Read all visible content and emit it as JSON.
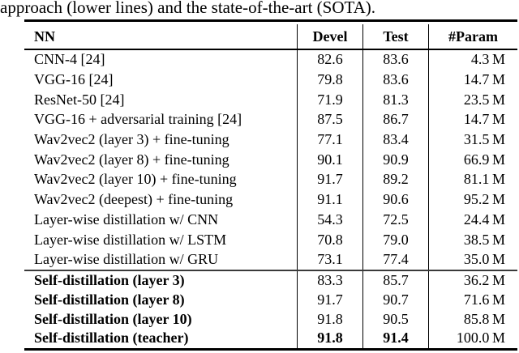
{
  "caption": "approach (lower lines) and the state-of-the-art (SOTA).",
  "table": {
    "header": {
      "nn": "NN",
      "devel": "Devel",
      "test": "Test",
      "param": "#Param"
    },
    "sections": [
      {
        "bold_names": false,
        "rows": [
          {
            "name": "CNN-4 [24]",
            "devel": "82.6",
            "test": "83.6",
            "param": "4.3 M"
          },
          {
            "name": "VGG-16 [24]",
            "devel": "79.8",
            "test": "83.6",
            "param": "14.7 M"
          },
          {
            "name": "ResNet-50 [24]",
            "devel": "71.9",
            "test": "81.3",
            "param": "23.5 M"
          },
          {
            "name": "VGG-16 + adversarial training [24]",
            "devel": "87.5",
            "test": "86.7",
            "param": "14.7 M"
          },
          {
            "name": "Wav2vec2 (layer 3) + fine-tuning",
            "devel": "77.1",
            "test": "83.4",
            "param": "31.5 M"
          },
          {
            "name": "Wav2vec2 (layer 8) + fine-tuning",
            "devel": "90.1",
            "test": "90.9",
            "param": "66.9 M"
          },
          {
            "name": "Wav2vec2 (layer 10) + fine-tuning",
            "devel": "91.7",
            "test": "89.2",
            "param": "81.1 M"
          },
          {
            "name": "Wav2vec2 (deepest) + fine-tuning",
            "devel": "91.1",
            "test": "90.6",
            "param": "95.2 M"
          },
          {
            "name": "Layer-wise distillation w/ CNN",
            "devel": "54.3",
            "test": "72.5",
            "param": "24.4 M"
          },
          {
            "name": "Layer-wise distillation w/ LSTM",
            "devel": "70.8",
            "test": "79.0",
            "param": "38.5 M"
          },
          {
            "name": "Layer-wise distillation w/ GRU",
            "devel": "73.1",
            "test": "77.4",
            "param": "35.0 M"
          }
        ]
      },
      {
        "bold_names": true,
        "rows": [
          {
            "name": "Self-distillation (layer 3)",
            "devel": "83.3",
            "test": "85.7",
            "param": "36.2 M"
          },
          {
            "name": "Self-distillation (layer 8)",
            "devel": "91.7",
            "test": "90.7",
            "param": "71.6 M"
          },
          {
            "name": "Self-distillation (layer 10)",
            "devel": "91.8",
            "test": "90.5",
            "param": "85.8 M"
          },
          {
            "name": "Self-distillation (teacher)",
            "devel": "91.8",
            "test": "91.4",
            "param": "100.0 M",
            "bold_values": true
          }
        ]
      }
    ]
  }
}
